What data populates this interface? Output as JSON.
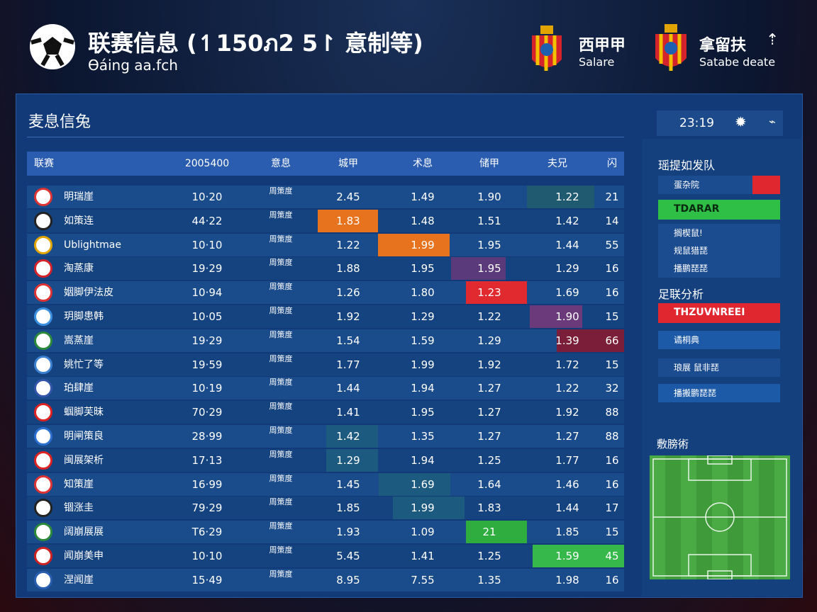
{
  "header": {
    "title": "联赛信息 (↿150ภ2 5↾ 意制等)",
    "subtitle": "Ɵáing aa.fch",
    "teams": [
      {
        "name": "西甲甲",
        "sub": "Salare"
      },
      {
        "name": "拿留扶",
        "sub": "Satabe deate"
      }
    ]
  },
  "panel": {
    "title": "麦息信兔",
    "time": "23:19"
  },
  "table": {
    "columns": [
      "联赛",
      "2005400",
      "意息",
      "城甲",
      "术息",
      "储甲",
      "夫兄",
      "闪"
    ],
    "rows": [
      [
        "明瑞崖",
        "10·20",
        "周策度",
        "2.45",
        "1.49",
        "1.90",
        "1.22",
        "21"
      ],
      [
        "如策连",
        "44·22",
        "周策度",
        "1.83",
        "1.48",
        "1.51",
        "1.42",
        "14"
      ],
      [
        "Ublightmae",
        "10·10",
        "周策度",
        "1.22",
        "1.99",
        "1.95",
        "1.44",
        "55"
      ],
      [
        "淘蒸康",
        "19·29",
        "周策度",
        "1.88",
        "1.95",
        "1.95",
        "1.29",
        "16"
      ],
      [
        "姻脚伊法皮",
        "10·94",
        "周策度",
        "1.26",
        "1.80",
        "1.23",
        "1.69",
        "16"
      ],
      [
        "玥脚患韩",
        "10·05",
        "周策度",
        "1.92",
        "1.29",
        "1.22",
        "1.90",
        "15"
      ],
      [
        "嵩蒸崖",
        "19·29",
        "周策度",
        "1.54",
        "1.59",
        "1.29",
        "1.39",
        "66"
      ],
      [
        "姚忙了等",
        "19·59",
        "周策度",
        "1.77",
        "1.99",
        "1.92",
        "1.72",
        "15"
      ],
      [
        "珀肆崖",
        "10·19",
        "周策度",
        "1.44",
        "1.94",
        "1.27",
        "1.22",
        "32"
      ],
      [
        "蝈脚芙昧",
        "70·29",
        "周策度",
        "1.41",
        "1.95",
        "1.27",
        "1.92",
        "88"
      ],
      [
        "明闸策良",
        "28·99",
        "周策度",
        "1.42",
        "1.35",
        "1.27",
        "1.27",
        "88"
      ],
      [
        "闽展架析",
        "17·13",
        "周策度",
        "1.29",
        "1.94",
        "1.25",
        "1.77",
        "16"
      ],
      [
        "知策崖",
        "16·99",
        "周策度",
        "1.45",
        "1.69",
        "1.64",
        "1.46",
        "16"
      ],
      [
        "锢涨圭",
        "79·29",
        "周策度",
        "1.85",
        "1.99",
        "1.83",
        "1.44",
        "17"
      ],
      [
        "阔崩展展",
        "T6·29",
        "周策度",
        "1.93",
        "1.09",
        "21",
        "1.85",
        "15"
      ],
      [
        "闻崩美申",
        "10·10",
        "周策度",
        "5.45",
        "1.41",
        "1.25",
        "1.59",
        "45"
      ],
      [
        "涅闻崖",
        "15·49",
        "周策度",
        "8.95",
        "7.55",
        "1.35",
        "1.98",
        "16"
      ]
    ]
  },
  "sidebar": {
    "section1": {
      "title": "瑶提如发队",
      "items": [
        "蛋杂院",
        "TDARAR",
        "搁楔鼠!",
        "规鼠猎琵",
        "播鹏琵琵"
      ]
    },
    "section2": {
      "title": "足联分析",
      "items": [
        "THZUVNREEI",
        "谲桐典",
        "琅展 鼠非琵",
        "播搬鹏琵琵"
      ]
    },
    "section3": {
      "title": "敷膀術"
    }
  }
}
